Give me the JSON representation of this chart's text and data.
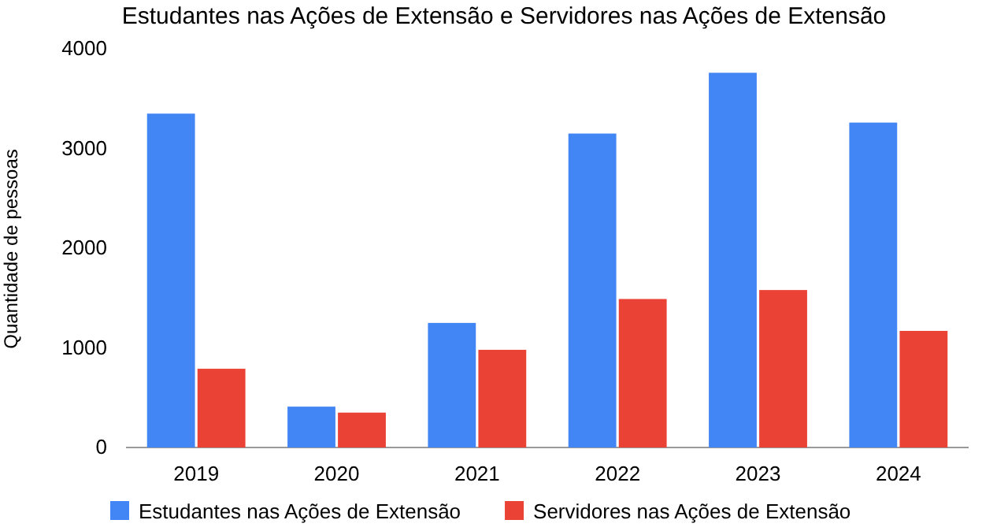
{
  "chart_data": {
    "type": "bar",
    "title": "Estudantes nas Ações de Extensão e Servidores nas Ações de Extensão",
    "ylabel": "Quantidade de pessoas",
    "categories": [
      "2019",
      "2020",
      "2021",
      "2022",
      "2023",
      "2024"
    ],
    "series": [
      {
        "name": "Estudantes nas Ações de Extensão",
        "color": "#4285f4",
        "values": [
          3350,
          410,
          1250,
          3150,
          3760,
          3260
        ]
      },
      {
        "name": "Servidores nas Ações de Extensão",
        "color": "#ea4335",
        "values": [
          790,
          350,
          980,
          1490,
          1580,
          1170
        ]
      }
    ],
    "ylim": [
      0,
      4000
    ],
    "yticks": [
      0,
      1000,
      2000,
      3000,
      4000
    ],
    "grid": false,
    "legend": "bottom"
  }
}
